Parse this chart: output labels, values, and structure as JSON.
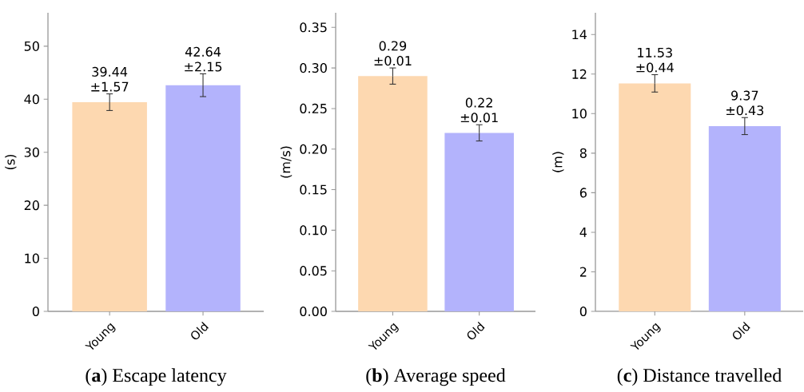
{
  "chart_data": [
    {
      "type": "bar",
      "title": "(**a**) Escape latency",
      "ylabel": "(s)",
      "categories": [
        "Young",
        "Old"
      ],
      "values": [
        39.44,
        42.64
      ],
      "errors": [
        1.57,
        2.15
      ],
      "value_labels": [
        "39.44 ±1.57",
        "42.64 ±2.15"
      ],
      "colors": [
        "#fdd8b0",
        "#b3b3fc"
      ],
      "ylim": [
        0,
        56.3
      ],
      "yticks": [
        0,
        10,
        20,
        30,
        40,
        50
      ]
    },
    {
      "type": "bar",
      "title": "(**b**) Average speed",
      "ylabel": "(m/s)",
      "categories": [
        "Young",
        "Old"
      ],
      "values": [
        0.29,
        0.22
      ],
      "errors": [
        0.01,
        0.01
      ],
      "value_labels": [
        "0.29 ±0.01",
        "0.22 ±0.01"
      ],
      "colors": [
        "#fdd8b0",
        "#b3b3fc"
      ],
      "ylim": [
        0,
        0.368
      ],
      "yticks": [
        {
          "value": 0,
          "label": "0.00"
        },
        {
          "value": 0.05,
          "label": "0.05"
        },
        {
          "value": 0.1,
          "label": "0.10"
        },
        {
          "value": 0.15,
          "label": "0.15"
        },
        {
          "value": 0.2,
          "label": "0.20"
        },
        {
          "value": 0.25,
          "label": "0.25"
        },
        {
          "value": 0.3,
          "label": "0.30"
        },
        {
          "value": 0.35,
          "label": "0.35"
        }
      ]
    },
    {
      "type": "bar",
      "title": "(**c**) Distance travelled",
      "ylabel": "(m)",
      "categories": [
        "Young",
        "Old"
      ],
      "values": [
        11.53,
        9.37
      ],
      "errors": [
        0.44,
        0.43
      ],
      "value_labels": [
        "11.53 ±0.44",
        "9.37 ±0.43"
      ],
      "colors": [
        "#fdd8b0",
        "#b3b3fc"
      ],
      "ylim": [
        0,
        15.1
      ],
      "yticks": [
        0,
        2,
        4,
        6,
        8,
        10,
        12,
        14
      ]
    }
  ]
}
